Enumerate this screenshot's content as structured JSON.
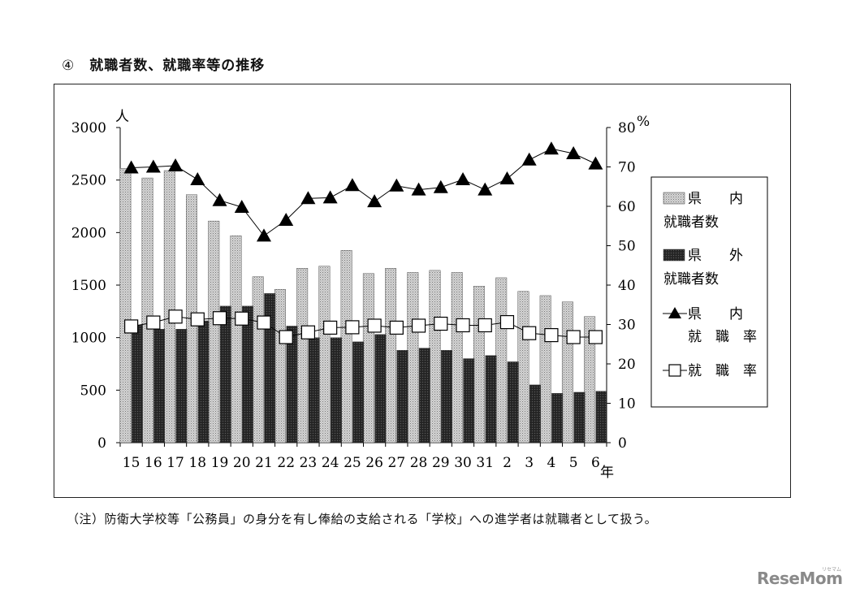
{
  "heading": {
    "number": "④",
    "text": "就職者数、就職率等の推移"
  },
  "note": "（注）防衛大学校等「公務員」の身分を有し俸給の支給される「学校」への進学者は就職者として扱う。",
  "logo": {
    "text": "ReseMom",
    "sub": "リセマム"
  },
  "chart_data": {
    "type": "bar",
    "categories": [
      "15",
      "16",
      "17",
      "18",
      "19",
      "20",
      "21",
      "22",
      "23",
      "24",
      "25",
      "26",
      "27",
      "28",
      "29",
      "30",
      "31",
      "2",
      "3",
      "4",
      "5",
      "6"
    ],
    "x_unit": "年",
    "left_axis": {
      "unit": "人",
      "min": 0,
      "max": 3000,
      "ticks": [
        "0",
        "500",
        "1000",
        "1500",
        "2000",
        "2500",
        "3000"
      ]
    },
    "right_axis": {
      "unit": "%",
      "min": 0,
      "max": 80,
      "ticks": [
        "0",
        "10",
        "20",
        "30",
        "40",
        "50",
        "60",
        "70",
        "80"
      ]
    },
    "series": [
      {
        "name_line1": "県　　内",
        "name_line2": "就職者数",
        "kind": "bar",
        "axis": "left",
        "style": "light-dotted",
        "values": [
          2610,
          2520,
          2590,
          2360,
          2110,
          1970,
          1580,
          1460,
          1660,
          1680,
          1830,
          1610,
          1660,
          1620,
          1640,
          1620,
          1490,
          1570,
          1440,
          1400,
          1340,
          1200
        ]
      },
      {
        "name_line1": "県　　外",
        "name_line2": "就職者数",
        "kind": "bar",
        "axis": "left",
        "style": "dark-dotted",
        "values": [
          1120,
          1080,
          1080,
          1160,
          1300,
          1300,
          1420,
          1110,
          1000,
          1000,
          960,
          1030,
          880,
          900,
          880,
          800,
          830,
          770,
          550,
          470,
          480,
          490
        ]
      },
      {
        "name_line1": "県　　内",
        "name_line2": "就　職　率",
        "kind": "line",
        "axis": "right",
        "marker": "triangle",
        "values": [
          69.8,
          70.0,
          70.3,
          66.8,
          61.5,
          59.8,
          52.5,
          56.5,
          62.0,
          62.2,
          65.3,
          61.2,
          65.2,
          64.2,
          64.8,
          66.8,
          64.2,
          67.0,
          71.8,
          74.6,
          73.4,
          70.8
        ]
      },
      {
        "name_line1": "就　職　率",
        "kind": "line",
        "axis": "right",
        "marker": "square-open",
        "values": [
          29.5,
          30.5,
          32.0,
          31.3,
          31.6,
          31.5,
          30.5,
          26.8,
          28.0,
          29.2,
          29.3,
          29.7,
          29.2,
          29.7,
          30.2,
          29.8,
          29.8,
          30.6,
          27.8,
          27.3,
          26.8,
          26.8
        ]
      }
    ]
  }
}
